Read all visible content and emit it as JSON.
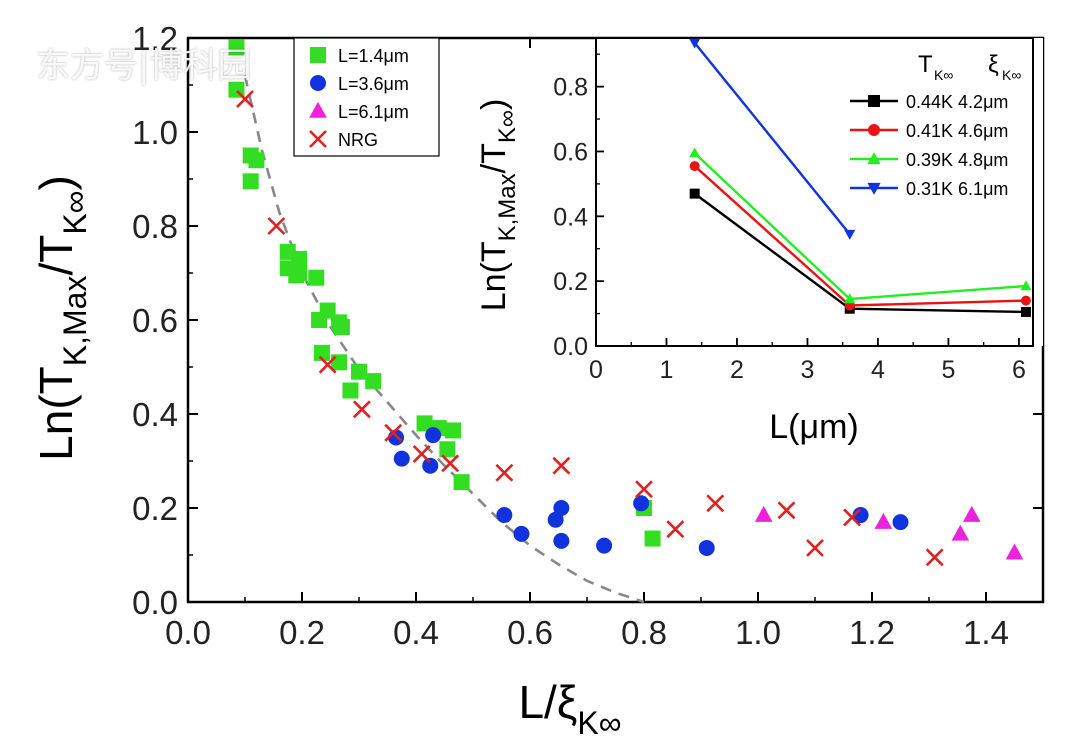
{
  "watermark": "东方号|博科园",
  "chart_data": [
    {
      "type": "scatter",
      "id": "main",
      "xlabel": "L/ξ",
      "xlabel_sub": "K∞",
      "ylabel_prefix": "Ln(T",
      "ylabel_sub1": "K,Max",
      "ylabel_mid": "/T",
      "ylabel_sub2": "K∞",
      "ylabel_suffix": ")",
      "xlim": [
        0.0,
        1.5
      ],
      "ylim": [
        0.0,
        1.2
      ],
      "xticks": [
        "0.0",
        "0.2",
        "0.4",
        "0.6",
        "0.8",
        "1.0",
        "1.2",
        "1.4"
      ],
      "yticks": [
        "0.0",
        "0.2",
        "0.4",
        "0.6",
        "0.8",
        "1.0",
        "1.2"
      ],
      "legend": [
        "L=1.4μm",
        "L=3.6μm",
        "L=6.1μm",
        "NRG"
      ],
      "legend_position": "top-left",
      "series": [
        {
          "name": "L=1.4μm",
          "marker": "square",
          "color": "#33dd22",
          "points": [
            [
              0.085,
              1.18
            ],
            [
              0.085,
              1.09
            ],
            [
              0.11,
              0.95
            ],
            [
              0.12,
              0.94
            ],
            [
              0.11,
              0.895
            ],
            [
              0.175,
              0.745
            ],
            [
              0.195,
              0.73
            ],
            [
              0.175,
              0.71
            ],
            [
              0.19,
              0.695
            ],
            [
              0.225,
              0.69
            ],
            [
              0.195,
              0.7
            ],
            [
              0.245,
              0.62
            ],
            [
              0.23,
              0.6
            ],
            [
              0.265,
              0.595
            ],
            [
              0.27,
              0.585
            ],
            [
              0.235,
              0.53
            ],
            [
              0.265,
              0.51
            ],
            [
              0.3,
              0.49
            ],
            [
              0.325,
              0.47
            ],
            [
              0.285,
              0.45
            ],
            [
              0.415,
              0.38
            ],
            [
              0.44,
              0.37
            ],
            [
              0.465,
              0.365
            ],
            [
              0.455,
              0.325
            ],
            [
              0.48,
              0.255
            ],
            [
              0.8,
              0.2
            ],
            [
              0.815,
              0.135
            ]
          ]
        },
        {
          "name": "L=3.6μm",
          "marker": "circle",
          "color": "#1133dd",
          "points": [
            [
              0.365,
              0.35
            ],
            [
              0.375,
              0.305
            ],
            [
              0.425,
              0.29
            ],
            [
              0.43,
              0.355
            ],
            [
              0.555,
              0.185
            ],
            [
              0.585,
              0.145
            ],
            [
              0.645,
              0.175
            ],
            [
              0.655,
              0.2
            ],
            [
              0.655,
              0.13
            ],
            [
              0.73,
              0.12
            ],
            [
              0.795,
              0.21
            ],
            [
              0.91,
              0.115
            ],
            [
              1.18,
              0.185
            ],
            [
              1.25,
              0.17
            ]
          ]
        },
        {
          "name": "L=6.1μm",
          "marker": "triangle",
          "color": "#ee22dd",
          "points": [
            [
              1.01,
              0.185
            ],
            [
              1.22,
              0.17
            ],
            [
              1.355,
              0.145
            ],
            [
              1.375,
              0.185
            ],
            [
              1.45,
              0.105
            ]
          ]
        },
        {
          "name": "NRG",
          "marker": "cross",
          "color": "#dd2222",
          "points": [
            [
              0.1,
              1.07
            ],
            [
              0.155,
              0.8
            ],
            [
              0.245,
              0.505
            ],
            [
              0.305,
              0.41
            ],
            [
              0.36,
              0.36
            ],
            [
              0.41,
              0.315
            ],
            [
              0.46,
              0.295
            ],
            [
              0.555,
              0.275
            ],
            [
              0.655,
              0.29
            ],
            [
              0.8,
              0.24
            ],
            [
              0.855,
              0.155
            ],
            [
              0.925,
              0.21
            ],
            [
              1.05,
              0.195
            ],
            [
              1.1,
              0.115
            ],
            [
              1.165,
              0.18
            ],
            [
              1.31,
              0.095
            ]
          ]
        }
      ],
      "fit_curve": {
        "color": "#888888",
        "dash": true,
        "points": [
          [
            0.1,
            1.12
          ],
          [
            0.13,
            0.96
          ],
          [
            0.16,
            0.83
          ],
          [
            0.2,
            0.7
          ],
          [
            0.25,
            0.585
          ],
          [
            0.3,
            0.495
          ],
          [
            0.35,
            0.425
          ],
          [
            0.4,
            0.355
          ],
          [
            0.45,
            0.29
          ],
          [
            0.5,
            0.23
          ],
          [
            0.55,
            0.17
          ],
          [
            0.6,
            0.12
          ],
          [
            0.65,
            0.08
          ],
          [
            0.7,
            0.045
          ],
          [
            0.75,
            0.02
          ],
          [
            0.8,
            0.0
          ]
        ]
      }
    },
    {
      "type": "line",
      "id": "inset",
      "xlabel": "L(μm)",
      "ylabel_prefix": "Ln(T",
      "ylabel_sub1": "K,Max",
      "ylabel_mid": "/T",
      "ylabel_sub2": "K∞",
      "ylabel_suffix": ")",
      "xlim": [
        0,
        6.2
      ],
      "ylim": [
        0.0,
        0.95
      ],
      "xticks": [
        "0",
        "1",
        "2",
        "3",
        "4",
        "5",
        "6"
      ],
      "yticks": [
        "0.0",
        "0.2",
        "0.4",
        "0.6",
        "0.8"
      ],
      "legend_header": {
        "col1": "T",
        "col1_sub": "K∞",
        "col2": "ξ",
        "col2_sub": "K∞"
      },
      "legend_position": "top-right",
      "series": [
        {
          "name": "0.44K 4.2μm",
          "marker": "square",
          "color": "#000000",
          "x": [
            1.4,
            3.6,
            6.1
          ],
          "y": [
            0.47,
            0.115,
            0.105
          ]
        },
        {
          "name": "0.41K 4.6μm",
          "marker": "circle",
          "color": "#ee1111",
          "x": [
            1.4,
            3.6,
            6.1
          ],
          "y": [
            0.555,
            0.125,
            0.14
          ]
        },
        {
          "name": "0.39K 4.8μm",
          "marker": "triangle",
          "color": "#22ee22",
          "x": [
            1.4,
            3.6,
            6.1
          ],
          "y": [
            0.595,
            0.145,
            0.185
          ]
        },
        {
          "name": "0.31K 6.1μm",
          "marker": "triangle-down",
          "color": "#1133dd",
          "x": [
            1.4,
            3.6
          ],
          "y": [
            0.935,
            0.345
          ]
        }
      ]
    }
  ]
}
